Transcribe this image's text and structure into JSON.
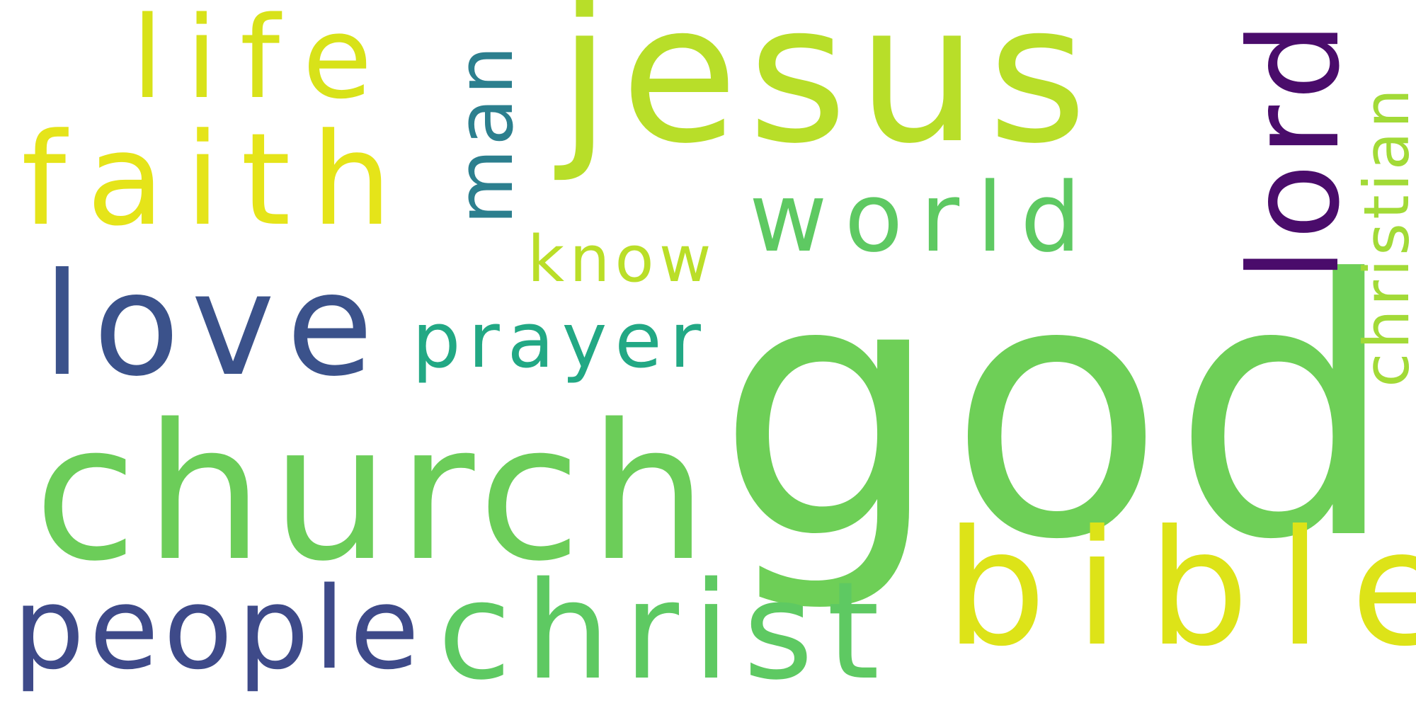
{
  "word_cloud": {
    "background": "#ffffff",
    "words": [
      {
        "id": "god",
        "text": "god",
        "orientation": "horizontal",
        "color": "#6ecf57"
      },
      {
        "id": "jesus",
        "text": "jesus",
        "orientation": "horizontal",
        "color": "#b8de29"
      },
      {
        "id": "church",
        "text": "church",
        "orientation": "horizontal",
        "color": "#6ccd59"
      },
      {
        "id": "love",
        "text": "love",
        "orientation": "horizontal",
        "color": "#3b528b"
      },
      {
        "id": "bible",
        "text": "bible",
        "orientation": "horizontal",
        "color": "#dde318"
      },
      {
        "id": "christ",
        "text": "christ",
        "orientation": "horizontal",
        "color": "#5ec962"
      },
      {
        "id": "faith",
        "text": "faith",
        "orientation": "horizontal",
        "color": "#e5e419"
      },
      {
        "id": "life",
        "text": "life",
        "orientation": "horizontal",
        "color": "#d8e219"
      },
      {
        "id": "people",
        "text": "people",
        "orientation": "horizontal",
        "color": "#3e4a89"
      },
      {
        "id": "world",
        "text": "world",
        "orientation": "horizontal",
        "color": "#5ec962"
      },
      {
        "id": "prayer",
        "text": "prayer",
        "orientation": "horizontal",
        "color": "#22a884"
      },
      {
        "id": "know",
        "text": "know",
        "orientation": "horizontal",
        "color": "#bade28"
      },
      {
        "id": "lord",
        "text": "lord",
        "orientation": "vertical",
        "color": "#4a0c6b"
      },
      {
        "id": "man",
        "text": "man",
        "orientation": "vertical",
        "color": "#2c7f8e"
      },
      {
        "id": "christian",
        "text": "christian",
        "orientation": "vertical",
        "color": "#a2da37"
      }
    ]
  }
}
